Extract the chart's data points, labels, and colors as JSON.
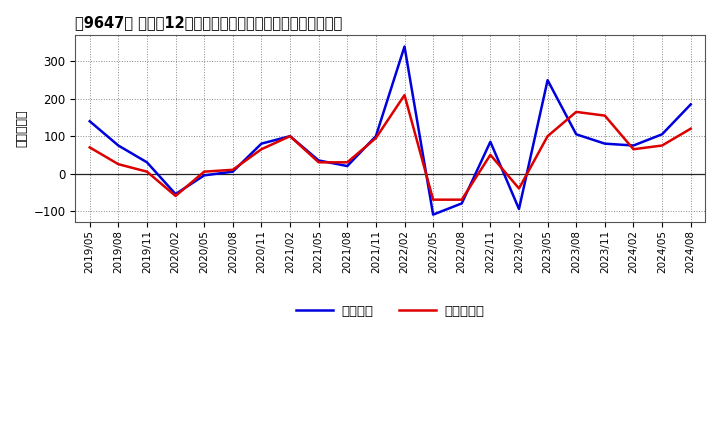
{
  "title": "）9647） 利益だ12か月移動合計の対前年同期増減額の推移",
  "ylabel": "（百万円）",
  "background_color": "#ffffff",
  "plot_bg_color": "#ffffff",
  "grid_color": "#888888",
  "ylim": [
    -130,
    370
  ],
  "yticks": [
    -100,
    0,
    100,
    200,
    300
  ],
  "xtick_labels": [
    "2019/05",
    "2019/08",
    "2019/11",
    "2020/02",
    "2020/05",
    "2020/08",
    "2020/11",
    "2021/02",
    "2021/05",
    "2021/08",
    "2021/11",
    "2022/02",
    "2022/05",
    "2022/08",
    "2022/11",
    "2023/02",
    "2023/05",
    "2023/08",
    "2023/11",
    "2024/02",
    "2024/05",
    "2024/08"
  ],
  "blue_label": "経常利益",
  "red_label": "当期純利益",
  "blue_color": "#0000dd",
  "red_color": "#dd0000",
  "line_width": 1.8,
  "blue_values": [
    140,
    75,
    30,
    -55,
    -5,
    5,
    80,
    100,
    35,
    20,
    100,
    340,
    -110,
    -80,
    85,
    -95,
    250,
    105,
    80,
    75,
    105,
    185
  ],
  "red_values": [
    70,
    25,
    5,
    -60,
    5,
    10,
    65,
    100,
    30,
    30,
    95,
    210,
    -70,
    -70,
    50,
    -40,
    100,
    165,
    155,
    65,
    75,
    120
  ]
}
